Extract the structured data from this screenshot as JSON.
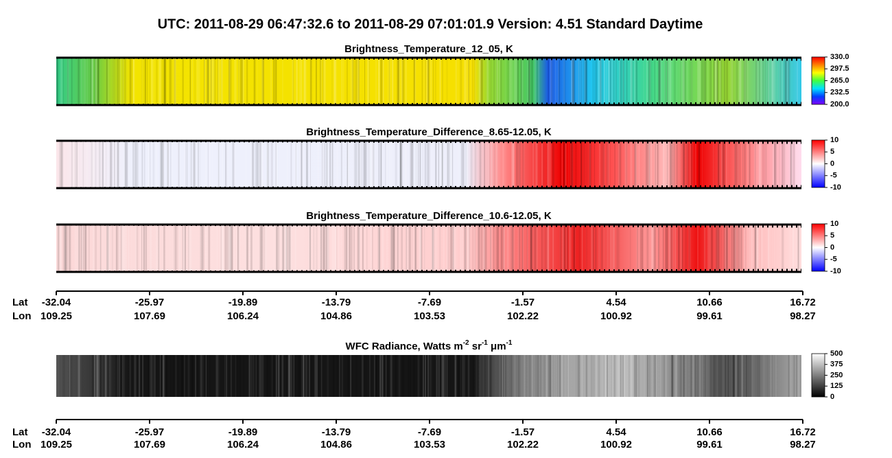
{
  "title": "UTC:  2011-08-29   06:47:32.6  to  2011-08-29   07:01:01.9    Version: 4.51  Standard Daytime",
  "panels": [
    {
      "title": [
        {
          "text": "Brightness_Temperature_12_05, K"
        }
      ],
      "colorbar": {
        "lim": [
          200,
          330
        ],
        "colors": [
          "#8000ff",
          "#0040ff",
          "#00e0ff",
          "#40ff40",
          "#ffff00",
          "#ff8000",
          "#ff0000"
        ],
        "ticks": [
          {
            "value": 330,
            "label": "330.0"
          },
          297.5,
          {
            "value": 265,
            "label": "265.0"
          },
          232.5,
          {
            "value": 200,
            "label": "200.0"
          }
        ]
      }
    },
    {
      "title": [
        {
          "text": "Brightness_Temperature_Difference_8.65-12.05, K"
        }
      ],
      "colorbar": {
        "lim": [
          -10,
          10
        ],
        "colors": [
          "#0000ff",
          "#ffffff",
          "#ff0000"
        ],
        "ticks": [
          10,
          5,
          0,
          -5,
          -10
        ]
      }
    },
    {
      "title": [
        {
          "text": "Brightness_Temperature_Difference_10.6-12.05, K"
        }
      ],
      "colorbar": {
        "lim": [
          -10,
          10
        ],
        "colors": [
          "#0000ff",
          "#ffffff",
          "#ff0000"
        ],
        "ticks": [
          10,
          5,
          0,
          -5,
          -10
        ]
      }
    },
    {
      "title": [
        {
          "text": "WFC Radiance, Watts m"
        },
        {
          "text": "-2",
          "sup": true
        },
        {
          "text": " sr"
        },
        {
          "text": "-1",
          "sup": true
        },
        {
          "text": " μm"
        },
        {
          "text": "-1",
          "sup": true
        }
      ],
      "colorbar": {
        "lim": [
          0,
          500
        ],
        "colors": [
          "#000000",
          "#ffffff"
        ],
        "ticks": [
          500,
          375,
          250,
          125,
          0
        ]
      }
    }
  ],
  "axes": [
    {
      "lat_label": "Lat",
      "lon_label": "Lon",
      "lat": [
        -32.04,
        -25.97,
        -19.89,
        -13.79,
        -7.69,
        -1.57,
        4.54,
        10.66,
        16.72
      ],
      "lon": [
        109.25,
        107.69,
        106.24,
        104.86,
        103.53,
        102.22,
        100.92,
        99.61,
        98.27
      ]
    },
    {
      "lat_label": "Lat",
      "lon_label": "Lon",
      "lat": [
        -32.04,
        -25.97,
        -19.89,
        -13.79,
        -7.69,
        -1.57,
        4.54,
        10.66,
        16.72
      ],
      "lon": [
        109.25,
        107.69,
        106.24,
        104.86,
        103.53,
        102.22,
        100.92,
        99.61,
        98.27
      ]
    }
  ]
}
